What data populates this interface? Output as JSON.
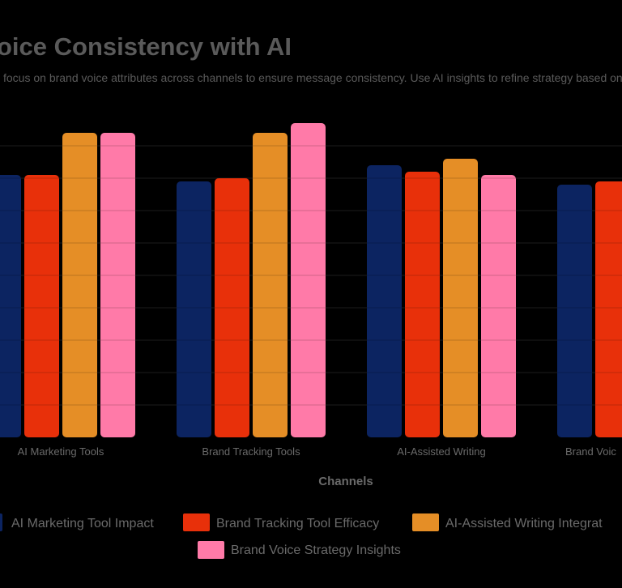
{
  "chart_data": {
    "type": "bar",
    "title": "oice Consistency with AI",
    "subtitle": "l focus on brand voice attributes across channels to ensure message consistency. Use AI insights to refine strategy based on a",
    "xlabel": "Channels",
    "ylabel": "",
    "ylim": [
      0,
      100
    ],
    "grid": true,
    "legend_placement": "bottom",
    "categories": [
      "AI Marketing Tools",
      "Brand Tracking Tools",
      "AI-Assisted Writing",
      "Brand Voic"
    ],
    "series": [
      {
        "name": "AI Marketing Tool Impact",
        "color": "#0c2461",
        "values": [
          81,
          79,
          84,
          78
        ]
      },
      {
        "name": "Brand Tracking Tool Efficacy",
        "color": "#e8300a",
        "values": [
          81,
          80,
          82,
          79
        ]
      },
      {
        "name": "AI-Assisted Writing Integrat",
        "color": "#e58e26",
        "values": [
          94,
          94,
          86,
          null
        ]
      },
      {
        "name": "Brand Voice Strategy Insights",
        "color": "#ff7aa8",
        "values": [
          94,
          97,
          81,
          null
        ]
      }
    ]
  }
}
